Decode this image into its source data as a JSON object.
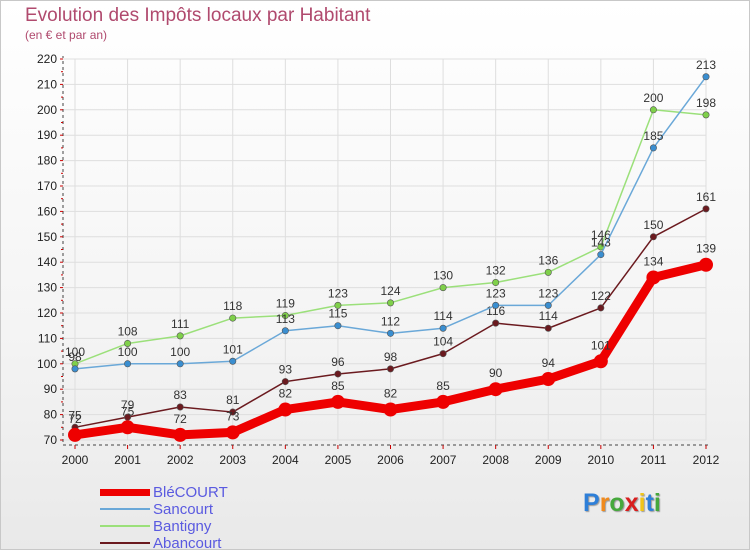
{
  "chart_data": {
    "type": "line",
    "title": "Evolution des Impôts locaux par Habitant",
    "subtitle": "(en € et par an)",
    "xlabel": "",
    "ylabel": "",
    "ylim": [
      70,
      220
    ],
    "yticks": [
      "70",
      "80",
      "90",
      "100",
      "110",
      "120",
      "130",
      "140",
      "150",
      "160",
      "170",
      "180",
      "190",
      "200",
      "210",
      "220"
    ],
    "categories": [
      "2000",
      "2001",
      "2002",
      "2003",
      "2004",
      "2005",
      "2006",
      "2007",
      "2008",
      "2009",
      "2010",
      "2011",
      "2012"
    ],
    "series": [
      {
        "name": "Abancourt",
        "color": "#6b1a1f",
        "values": [
          75,
          79,
          83,
          81,
          93,
          96,
          98,
          104,
          116,
          114,
          122,
          150,
          161
        ],
        "labels": [
          "75",
          "79",
          "83",
          "81",
          "93",
          "96",
          "98",
          "104",
          "116",
          "114",
          "122",
          "150",
          "161"
        ]
      },
      {
        "name": "Bantigny",
        "color": "#9be07a",
        "point_color": "#7fd04a",
        "values": [
          100,
          108,
          111,
          118,
          119,
          123,
          124,
          130,
          132,
          136,
          146,
          200,
          198
        ],
        "labels": [
          "100",
          "108",
          "111",
          "118",
          "119",
          "123",
          "124",
          "130",
          "132",
          "136",
          "146",
          "200",
          "198"
        ]
      },
      {
        "name": "Sancourt",
        "color": "#6aa8d8",
        "point_color": "#3a8ed0",
        "values": [
          98,
          100,
          100,
          101,
          113,
          115,
          112,
          114,
          123,
          123,
          143,
          185,
          213
        ],
        "labels": [
          "98",
          "100",
          "100",
          "101",
          "113",
          "115",
          "112",
          "114",
          "123",
          "123",
          "143",
          "185",
          "213"
        ]
      },
      {
        "name": "BléCOURT",
        "color": "#ee0000",
        "values": [
          72,
          75,
          72,
          73,
          82,
          85,
          82,
          85,
          90,
          94,
          101,
          134,
          139
        ],
        "labels": [
          "72",
          "75",
          "72",
          "73",
          "82",
          "85",
          "82",
          "85",
          "90",
          "94",
          "101",
          "134",
          "139"
        ]
      }
    ],
    "legend": [
      "BléCOURT",
      "Sancourt",
      "Bantigny",
      "Abancourt"
    ],
    "legend_position": "bottom-left"
  },
  "legend_colors": [
    "#ee0000",
    "#6aa8d8",
    "#9be07a",
    "#6b1a1f"
  ],
  "logo": {
    "letters": [
      "P",
      "r",
      "o",
      "x",
      "i",
      "t",
      "i"
    ],
    "colors": [
      "#2e7fd8",
      "#f08a1c",
      "#46a83c",
      "#d81e1e",
      "#f0c419",
      "#2e7fd8",
      "#46a83c"
    ]
  }
}
